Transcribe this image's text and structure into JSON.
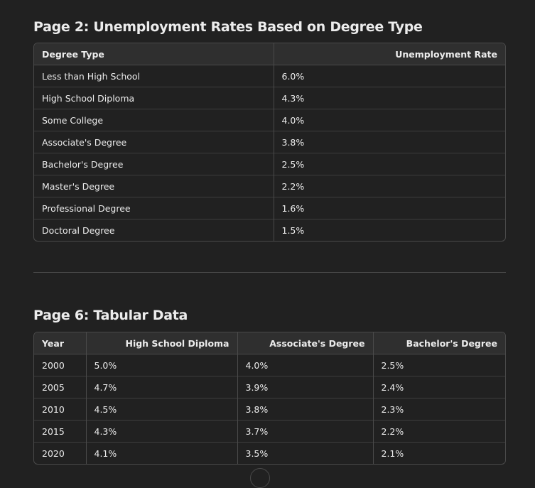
{
  "section1": {
    "title": "Page 2: Unemployment Rates Based on Degree Type",
    "headers": [
      "Degree Type",
      "Unemployment Rate"
    ],
    "rows": [
      [
        "Less than High School",
        "6.0%"
      ],
      [
        "High School Diploma",
        "4.3%"
      ],
      [
        "Some College",
        "4.0%"
      ],
      [
        "Associate's Degree",
        "3.8%"
      ],
      [
        "Bachelor's Degree",
        "2.5%"
      ],
      [
        "Master's Degree",
        "2.2%"
      ],
      [
        "Professional Degree",
        "1.6%"
      ],
      [
        "Doctoral Degree",
        "1.5%"
      ]
    ]
  },
  "section2": {
    "title": "Page 6: Tabular Data",
    "headers": [
      "Year",
      "High School Diploma",
      "Associate's Degree",
      "Bachelor's Degree"
    ],
    "rows": [
      [
        "2000",
        "5.0%",
        "4.0%",
        "2.5%"
      ],
      [
        "2005",
        "4.7%",
        "3.9%",
        "2.4%"
      ],
      [
        "2010",
        "4.5%",
        "3.8%",
        "2.3%"
      ],
      [
        "2015",
        "4.3%",
        "3.7%",
        "2.2%"
      ],
      [
        "2020",
        "4.1%",
        "3.5%",
        "2.1%"
      ]
    ]
  },
  "colors": {
    "background": "#212121",
    "header_bg": "#2f2f2f",
    "border": "#4a4a4a",
    "text": "#ececec"
  }
}
